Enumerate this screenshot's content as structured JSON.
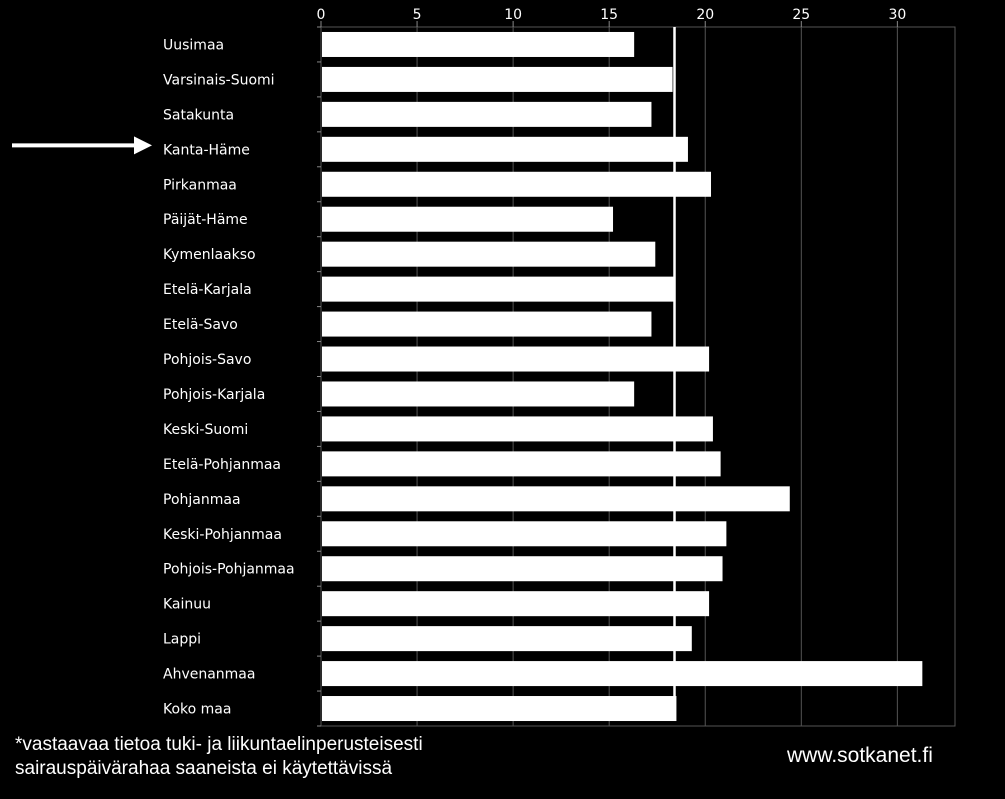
{
  "chart_data": {
    "type": "bar",
    "orientation": "horizontal",
    "categories": [
      "Uusimaa",
      "Varsinais-Suomi",
      "Satakunta",
      "Kanta-Häme",
      "Pirkanmaa",
      "Päijät-Häme",
      "Kymenlaakso",
      "Etelä-Karjala",
      "Etelä-Savo",
      "Pohjois-Savo",
      "Pohjois-Karjala",
      "Keski-Suomi",
      "Etelä-Pohjanmaa",
      "Pohjanmaa",
      "Keski-Pohjanmaa",
      "Pohjois-Pohjanmaa",
      "Kainuu",
      "Lappi",
      "Ahvenanmaa",
      "Koko maa"
    ],
    "values": [
      16.3,
      18.3,
      17.2,
      19.1,
      20.3,
      15.2,
      17.4,
      18.4,
      17.2,
      20.2,
      16.3,
      20.4,
      20.8,
      24.4,
      21.1,
      20.9,
      20.2,
      19.3,
      31.3,
      18.5
    ],
    "xlim": [
      0,
      33
    ],
    "xticks": [
      0,
      5,
      10,
      15,
      20,
      25,
      30
    ],
    "reference_line": 18.4,
    "highlight_category": "Kanta-Häme",
    "grid": true,
    "bar_color": "#ffffff",
    "background_color": "#000000",
    "grid_color": "#555555"
  },
  "footnote": {
    "line1": "*vastaavaa tietoa tuki- ja liikuntaelinperusteisesti",
    "line2": "sairauspäivärahaa saaneista ei käytettävissä"
  },
  "source": "www.sotkanet.fi"
}
